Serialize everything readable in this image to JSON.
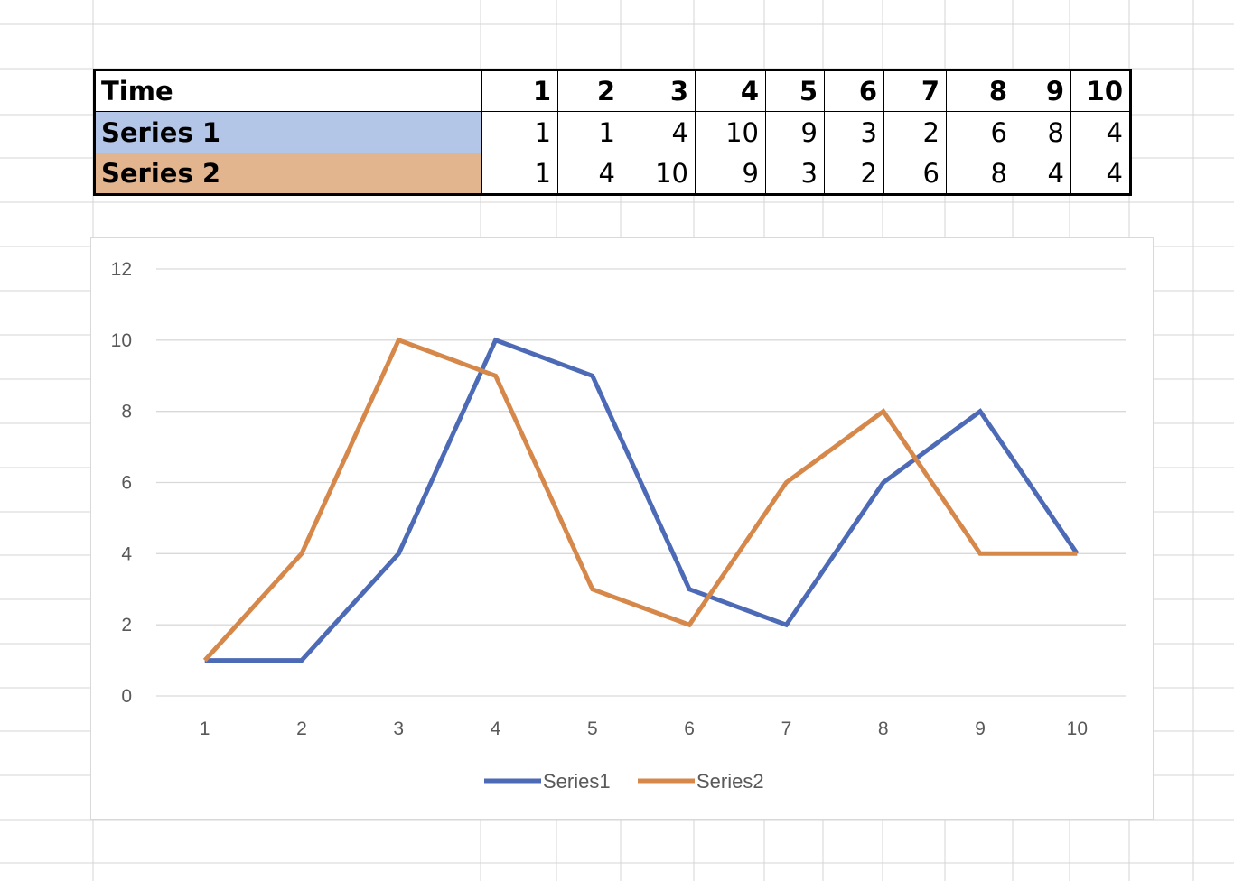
{
  "table": {
    "header_label": "Time",
    "header_values": [
      "1",
      "2",
      "3",
      "4",
      "5",
      "6",
      "7",
      "8",
      "9",
      "10"
    ],
    "rows": [
      {
        "label": "Series 1",
        "fill": "#b4c6e7",
        "values": [
          "1",
          "1",
          "4",
          "10",
          "9",
          "3",
          "2",
          "6",
          "8",
          "4"
        ]
      },
      {
        "label": "Series 2",
        "fill": "#e3b58f",
        "values": [
          "1",
          "4",
          "10",
          "9",
          "3",
          "2",
          "6",
          "8",
          "4",
          "4"
        ]
      }
    ]
  },
  "chart_data": {
    "type": "line",
    "x": [
      1,
      2,
      3,
      4,
      5,
      6,
      7,
      8,
      9,
      10
    ],
    "x_tick_labels": [
      "1",
      "2",
      "3",
      "4",
      "5",
      "6",
      "7",
      "8",
      "9",
      "10"
    ],
    "y_tick_labels": [
      "0",
      "2",
      "4",
      "6",
      "8",
      "10",
      "12"
    ],
    "ylim": [
      0,
      12
    ],
    "grid": true,
    "legend_position": "bottom",
    "series": [
      {
        "name": "Series1",
        "color": "#4c6ab6",
        "values": [
          1,
          1,
          4,
          10,
          9,
          3,
          2,
          6,
          8,
          4
        ]
      },
      {
        "name": "Series2",
        "color": "#d6884b",
        "values": [
          1,
          4,
          10,
          9,
          3,
          2,
          6,
          8,
          4,
          4
        ]
      }
    ],
    "colors": {
      "gridline": "#d9d9d9",
      "tick_text": "#595959"
    }
  }
}
